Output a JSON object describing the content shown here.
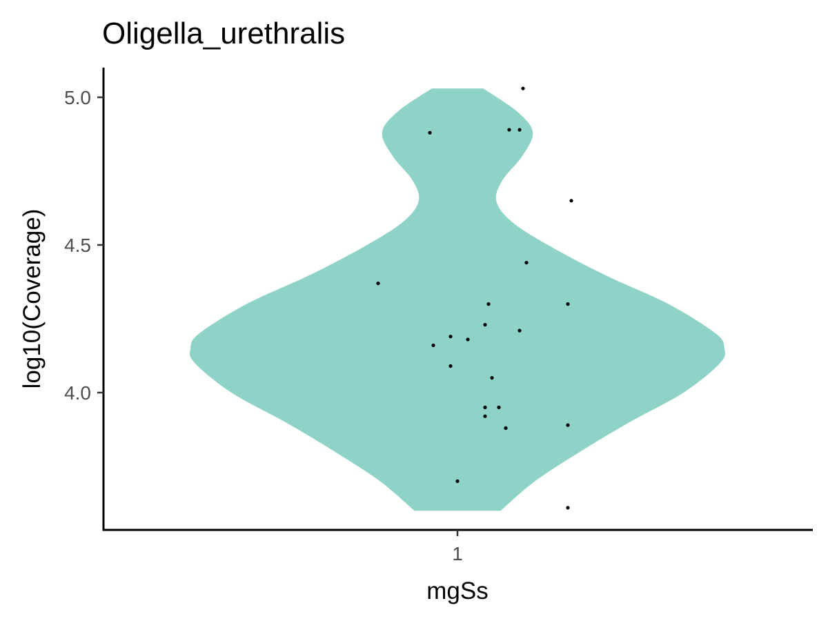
{
  "chart_data": {
    "type": "violin",
    "title": "Oligella_urethralis",
    "xlabel": "mgSs",
    "ylabel": "log10(Coverage)",
    "categories": [
      "1"
    ],
    "yticks": [
      "4.0",
      "4.5",
      "5.0"
    ],
    "ylim": [
      3.55,
      5.1
    ],
    "grid": false,
    "violin_color": "#8fd3c8",
    "violin_y_range": [
      3.6,
      5.03
    ],
    "density_profile": [
      {
        "y": 3.6,
        "w": 0.2
      },
      {
        "y": 3.7,
        "w": 0.36
      },
      {
        "y": 3.8,
        "w": 0.57
      },
      {
        "y": 3.9,
        "w": 0.8
      },
      {
        "y": 4.0,
        "w": 1.05
      },
      {
        "y": 4.1,
        "w": 1.22
      },
      {
        "y": 4.15,
        "w": 1.24
      },
      {
        "y": 4.2,
        "w": 1.2
      },
      {
        "y": 4.3,
        "w": 0.98
      },
      {
        "y": 4.4,
        "w": 0.68
      },
      {
        "y": 4.5,
        "w": 0.42
      },
      {
        "y": 4.58,
        "w": 0.25
      },
      {
        "y": 4.65,
        "w": 0.18
      },
      {
        "y": 4.72,
        "w": 0.21
      },
      {
        "y": 4.8,
        "w": 0.3
      },
      {
        "y": 4.88,
        "w": 0.35
      },
      {
        "y": 4.95,
        "w": 0.28
      },
      {
        "y": 5.03,
        "w": 0.12
      }
    ],
    "points": [
      {
        "x": 1.19,
        "y": 5.03
      },
      {
        "x": 0.92,
        "y": 4.88
      },
      {
        "x": 1.15,
        "y": 4.89
      },
      {
        "x": 1.18,
        "y": 4.89
      },
      {
        "x": 1.33,
        "y": 4.65
      },
      {
        "x": 1.2,
        "y": 4.44
      },
      {
        "x": 0.77,
        "y": 4.37
      },
      {
        "x": 1.09,
        "y": 4.3
      },
      {
        "x": 1.32,
        "y": 4.3
      },
      {
        "x": 1.08,
        "y": 4.23
      },
      {
        "x": 1.18,
        "y": 4.21
      },
      {
        "x": 0.98,
        "y": 4.19
      },
      {
        "x": 1.03,
        "y": 4.18
      },
      {
        "x": 0.93,
        "y": 4.16
      },
      {
        "x": 0.98,
        "y": 4.09
      },
      {
        "x": 1.1,
        "y": 4.05
      },
      {
        "x": 1.12,
        "y": 3.95
      },
      {
        "x": 1.08,
        "y": 3.95
      },
      {
        "x": 1.08,
        "y": 3.92
      },
      {
        "x": 1.32,
        "y": 3.89
      },
      {
        "x": 1.14,
        "y": 3.88
      },
      {
        "x": 1.0,
        "y": 3.7
      },
      {
        "x": 1.32,
        "y": 3.61
      }
    ]
  }
}
